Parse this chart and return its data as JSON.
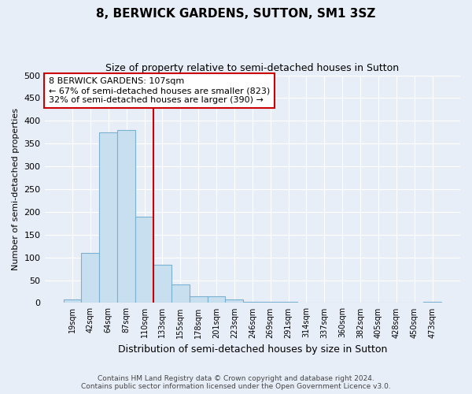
{
  "title": "8, BERWICK GARDENS, SUTTON, SM1 3SZ",
  "subtitle": "Size of property relative to semi-detached houses in Sutton",
  "xlabel": "Distribution of semi-detached houses by size in Sutton",
  "ylabel": "Number of semi-detached properties",
  "bar_labels": [
    "19sqm",
    "42sqm",
    "64sqm",
    "87sqm",
    "110sqm",
    "133sqm",
    "155sqm",
    "178sqm",
    "201sqm",
    "223sqm",
    "246sqm",
    "269sqm",
    "291sqm",
    "314sqm",
    "337sqm",
    "360sqm",
    "382sqm",
    "405sqm",
    "428sqm",
    "450sqm",
    "473sqm"
  ],
  "bar_values": [
    8,
    110,
    375,
    380,
    190,
    83,
    40,
    14,
    14,
    7,
    3,
    2,
    2,
    1,
    0,
    0,
    0,
    0,
    0,
    0,
    2
  ],
  "bar_color": "#c8dff0",
  "bar_edge_color": "#7ab0d0",
  "marker_line_color": "#cc0000",
  "annotation_title": "8 BERWICK GARDENS: 107sqm",
  "annotation_line1": "← 67% of semi-detached houses are smaller (823)",
  "annotation_line2": "32% of semi-detached houses are larger (390) →",
  "annotation_box_color": "#ffffff",
  "annotation_box_edge": "#cc0000",
  "ylim": [
    0,
    500
  ],
  "yticks": [
    0,
    50,
    100,
    150,
    200,
    250,
    300,
    350,
    400,
    450,
    500
  ],
  "footer_line1": "Contains HM Land Registry data © Crown copyright and database right 2024.",
  "footer_line2": "Contains public sector information licensed under the Open Government Licence v3.0.",
  "bg_color": "#e8eef8",
  "plot_bg_color": "#e8eef8",
  "grid_color": "#ffffff"
}
